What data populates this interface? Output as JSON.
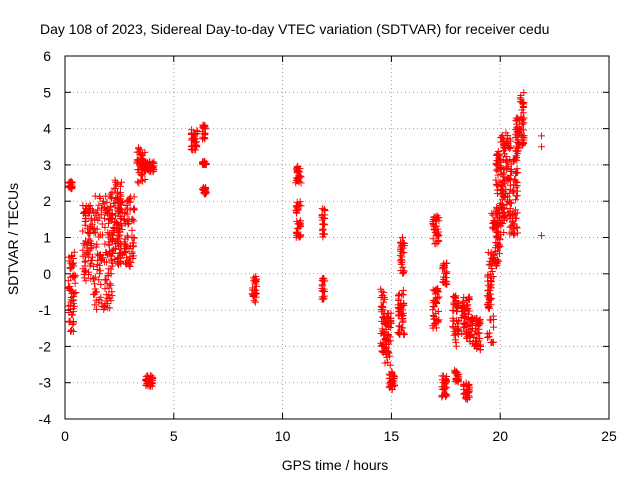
{
  "chart_data": {
    "type": "scatter",
    "title": "Day 108 of 2023, Sidereal Day-to-day VTEC variation (SDTVAR) for receiver cedu",
    "xlabel": "GPS time / hours",
    "ylabel": "SDTVAR / TECUs",
    "xlim": [
      0,
      25
    ],
    "ylim": [
      -4,
      6
    ],
    "xticks": [
      0,
      5,
      10,
      15,
      20,
      25
    ],
    "yticks": [
      -4,
      -3,
      -2,
      -1,
      0,
      1,
      2,
      3,
      4,
      5,
      6
    ],
    "grid": true,
    "marker": "plus",
    "color": "#ff0000",
    "segments": [
      [
        0.15,
        0.35,
        2.3,
        2.55
      ],
      [
        0.15,
        0.5,
        -1.6,
        0.6
      ],
      [
        0.8,
        1.3,
        -0.2,
        1.9
      ],
      [
        1.3,
        2.2,
        -1.0,
        2.2
      ],
      [
        2.0,
        2.6,
        0.3,
        2.6
      ],
      [
        2.4,
        3.2,
        0.2,
        2.2
      ],
      [
        3.3,
        3.7,
        2.5,
        3.5
      ],
      [
        3.6,
        4.1,
        2.8,
        3.1
      ],
      [
        3.7,
        4.05,
        -3.1,
        -2.8
      ],
      [
        5.8,
        6.1,
        3.4,
        4.0
      ],
      [
        6.3,
        6.45,
        3.7,
        4.1
      ],
      [
        6.3,
        6.5,
        3.0,
        3.1
      ],
      [
        6.3,
        6.5,
        2.2,
        2.4
      ],
      [
        8.6,
        8.8,
        -0.8,
        0.0
      ],
      [
        10.6,
        10.85,
        2.5,
        3.0
      ],
      [
        10.6,
        10.85,
        1.0,
        2.0
      ],
      [
        11.8,
        11.95,
        1.0,
        1.8
      ],
      [
        11.8,
        11.95,
        -0.7,
        -0.1
      ],
      [
        14.5,
        14.7,
        -2.2,
        -0.4
      ],
      [
        14.7,
        15.0,
        -2.6,
        -1.0
      ],
      [
        14.9,
        15.15,
        -3.2,
        -2.7
      ],
      [
        15.3,
        15.6,
        -1.8,
        -0.4
      ],
      [
        15.4,
        15.6,
        0.0,
        1.0
      ],
      [
        16.9,
        17.2,
        -1.5,
        -0.4
      ],
      [
        16.9,
        17.2,
        0.8,
        1.6
      ],
      [
        17.3,
        17.55,
        -3.4,
        -2.8
      ],
      [
        17.35,
        17.55,
        -0.3,
        0.3
      ],
      [
        17.8,
        18.1,
        -2.0,
        -0.6
      ],
      [
        17.9,
        18.1,
        -3.0,
        -2.6
      ],
      [
        18.3,
        18.6,
        -3.5,
        -3.0
      ],
      [
        18.2,
        18.6,
        -1.8,
        -0.6
      ],
      [
        18.6,
        19.1,
        -2.1,
        -1.2
      ],
      [
        19.4,
        19.7,
        -1.9,
        0.6
      ],
      [
        19.6,
        20.0,
        0.2,
        1.8
      ],
      [
        19.8,
        20.2,
        1.0,
        3.4
      ],
      [
        20.0,
        20.5,
        1.5,
        3.9
      ],
      [
        20.4,
        20.8,
        1.0,
        3.2
      ],
      [
        20.7,
        20.9,
        3.2,
        4.3
      ],
      [
        20.9,
        21.1,
        3.5,
        5.0
      ]
    ],
    "points": [
      [
        21.9,
        3.8
      ],
      [
        21.9,
        3.5
      ],
      [
        21.9,
        1.05
      ]
    ]
  }
}
